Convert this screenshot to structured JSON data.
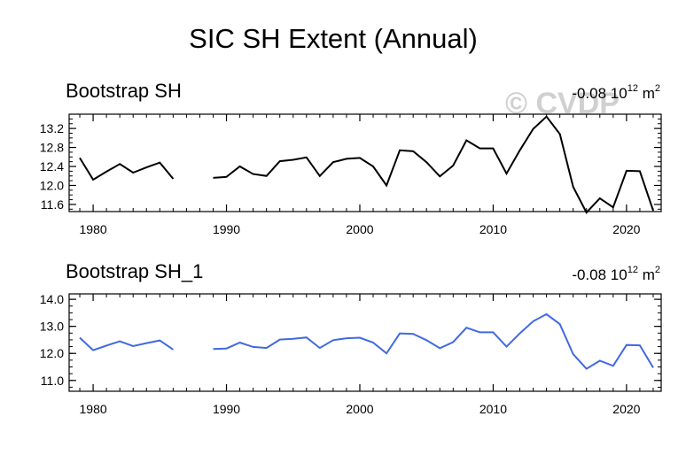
{
  "figure_title": "SIC SH Extent (Annual)",
  "watermark_text": "© CVDP",
  "chart_data": [
    {
      "type": "line",
      "title": "Bootstrap SH",
      "trend_value": "-0.08",
      "trend_unit_base": "10",
      "trend_unit_exp": "12",
      "trend_unit_area": "m",
      "trend_unit_area_exp": "2",
      "color": "#000000",
      "xlim": [
        1978.2,
        2022.6
      ],
      "ylim": [
        11.45,
        13.5
      ],
      "xticks": [
        1980,
        1990,
        2000,
        2010,
        2020
      ],
      "xtick_labels": [
        "1980",
        "1990",
        "2000",
        "2010",
        "2020"
      ],
      "yticks": [
        11.6,
        12.0,
        12.4,
        12.8,
        13.2
      ],
      "ytick_labels": [
        "11.6",
        "12.0",
        "12.4",
        "12.8",
        "13.2"
      ],
      "xlabel": "",
      "ylabel": "",
      "x": [
        1979,
        1980,
        1981,
        1982,
        1983,
        1984,
        1985,
        1986,
        1987,
        1988,
        1989,
        1990,
        1991,
        1992,
        1993,
        1994,
        1995,
        1996,
        1997,
        1998,
        1999,
        2000,
        2001,
        2002,
        2003,
        2004,
        2005,
        2006,
        2007,
        2008,
        2009,
        2010,
        2011,
        2012,
        2013,
        2014,
        2015,
        2016,
        2017,
        2018,
        2019,
        2020,
        2021,
        2022
      ],
      "values": [
        12.58,
        12.12,
        12.29,
        12.45,
        12.27,
        12.38,
        12.48,
        12.14,
        null,
        null,
        12.16,
        12.18,
        12.4,
        12.24,
        12.2,
        12.51,
        12.54,
        12.59,
        12.2,
        12.49,
        12.56,
        12.58,
        12.4,
        12.0,
        12.74,
        12.72,
        12.49,
        12.19,
        12.42,
        12.95,
        12.78,
        12.78,
        12.25,
        12.74,
        13.19,
        13.45,
        13.08,
        11.97,
        11.43,
        11.73,
        11.54,
        12.31,
        12.3,
        11.47
      ]
    },
    {
      "type": "line",
      "title": "Bootstrap SH_1",
      "trend_value": "-0.08",
      "trend_unit_base": "10",
      "trend_unit_exp": "12",
      "trend_unit_area": "m",
      "trend_unit_area_exp": "2",
      "color": "#4169e1",
      "xlim": [
        1978.2,
        2022.6
      ],
      "ylim": [
        10.6,
        14.2
      ],
      "xticks": [
        1980,
        1990,
        2000,
        2010,
        2020
      ],
      "xtick_labels": [
        "1980",
        "1990",
        "2000",
        "2010",
        "2020"
      ],
      "yticks": [
        11.0,
        12.0,
        13.0,
        14.0
      ],
      "ytick_labels": [
        "11.0",
        "12.0",
        "13.0",
        "14.0"
      ],
      "xlabel": "",
      "ylabel": "",
      "x": [
        1979,
        1980,
        1981,
        1982,
        1983,
        1984,
        1985,
        1986,
        1987,
        1988,
        1989,
        1990,
        1991,
        1992,
        1993,
        1994,
        1995,
        1996,
        1997,
        1998,
        1999,
        2000,
        2001,
        2002,
        2003,
        2004,
        2005,
        2006,
        2007,
        2008,
        2009,
        2010,
        2011,
        2012,
        2013,
        2014,
        2015,
        2016,
        2017,
        2018,
        2019,
        2020,
        2021,
        2022
      ],
      "values": [
        12.58,
        12.12,
        12.29,
        12.45,
        12.27,
        12.38,
        12.48,
        12.14,
        null,
        null,
        12.16,
        12.18,
        12.4,
        12.24,
        12.2,
        12.51,
        12.54,
        12.59,
        12.2,
        12.49,
        12.56,
        12.58,
        12.4,
        12.0,
        12.74,
        12.72,
        12.49,
        12.19,
        12.42,
        12.95,
        12.78,
        12.78,
        12.25,
        12.74,
        13.19,
        13.45,
        13.08,
        11.97,
        11.43,
        11.73,
        11.54,
        12.31,
        12.3,
        11.47
      ]
    }
  ]
}
